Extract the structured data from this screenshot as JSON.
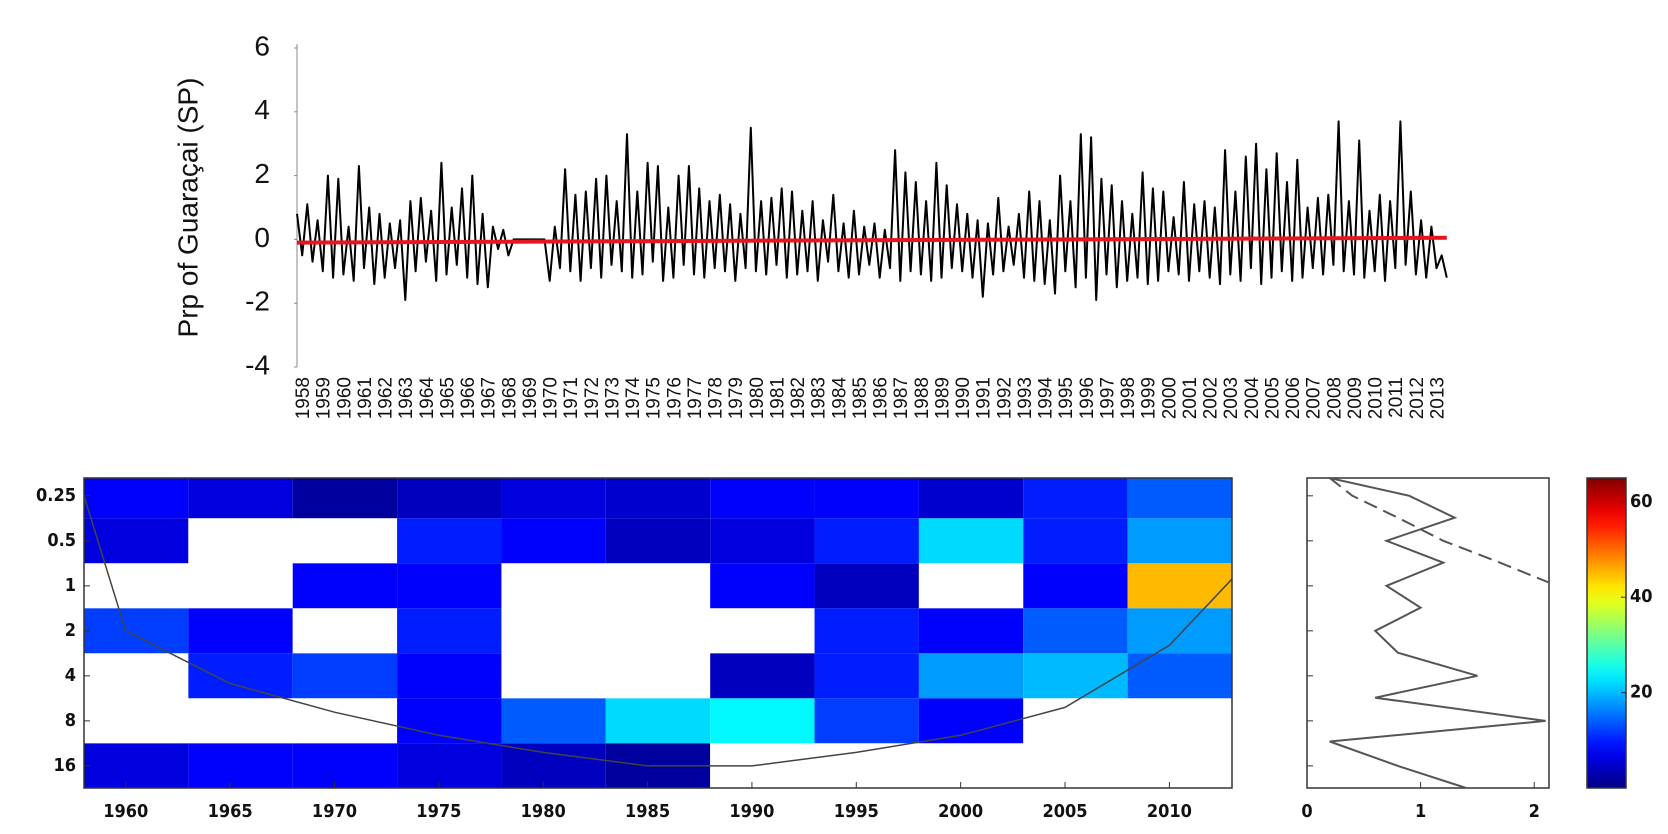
{
  "chart_data": [
    {
      "type": "line",
      "ylabel": "Prp of Guaraçai (SP)",
      "xlim": [
        1958,
        2014
      ],
      "xticks": [
        1958,
        1959,
        1960,
        1961,
        1962,
        1963,
        1964,
        1965,
        1966,
        1967,
        1968,
        1969,
        1970,
        1971,
        1972,
        1973,
        1974,
        1975,
        1976,
        1977,
        1978,
        1979,
        1980,
        1981,
        1982,
        1983,
        1984,
        1985,
        1986,
        1987,
        1988,
        1989,
        1990,
        1991,
        1992,
        1993,
        1994,
        1995,
        1996,
        1997,
        1998,
        1999,
        2000,
        2001,
        2002,
        2003,
        2004,
        2005,
        2006,
        2007,
        2008,
        2009,
        2010,
        2011,
        2012,
        2013
      ],
      "ylim": [
        -4,
        6
      ],
      "yticks": [
        -4,
        -2,
        0,
        2,
        4,
        6
      ],
      "grid": false,
      "series": [
        {
          "color": "#000000",
          "x": [
            1958,
            1958.25,
            1958.5,
            1958.75,
            1959,
            1959.25,
            1959.5,
            1959.75,
            1960,
            1960.25,
            1960.5,
            1960.75,
            1961,
            1961.25,
            1961.5,
            1961.75,
            1962,
            1962.25,
            1962.5,
            1962.75,
            1963,
            1963.25,
            1963.5,
            1963.75,
            1964,
            1964.25,
            1964.5,
            1964.75,
            1965,
            1965.25,
            1965.5,
            1965.75,
            1966,
            1966.25,
            1966.5,
            1966.75,
            1967,
            1967.25,
            1967.5,
            1967.75,
            1968,
            1968.25,
            1968.5,
            1968.75,
            1969,
            1969.25,
            1969.5,
            1969.75,
            1970,
            1970.25,
            1970.5,
            1970.75,
            1971,
            1971.25,
            1971.5,
            1971.75,
            1972,
            1972.25,
            1972.5,
            1972.75,
            1973,
            1973.25,
            1973.5,
            1973.75,
            1974,
            1974.25,
            1974.5,
            1974.75,
            1975,
            1975.25,
            1975.5,
            1975.75,
            1976,
            1976.25,
            1976.5,
            1976.75,
            1977,
            1977.25,
            1977.5,
            1977.75,
            1978,
            1978.25,
            1978.5,
            1978.75,
            1979,
            1979.25,
            1979.5,
            1979.75,
            1980,
            1980.25,
            1980.5,
            1980.75,
            1981,
            1981.25,
            1981.5,
            1981.75,
            1982,
            1982.25,
            1982.5,
            1982.75,
            1983,
            1983.25,
            1983.5,
            1983.75,
            1984,
            1984.25,
            1984.5,
            1984.75,
            1985,
            1985.25,
            1985.5,
            1985.75,
            1986,
            1986.25,
            1986.5,
            1986.75,
            1987,
            1987.25,
            1987.5,
            1987.75,
            1988,
            1988.25,
            1988.5,
            1988.75,
            1989,
            1989.25,
            1989.5,
            1989.75,
            1990,
            1990.25,
            1990.5,
            1990.75,
            1991,
            1991.25,
            1991.5,
            1991.75,
            1992,
            1992.25,
            1992.5,
            1992.75,
            1993,
            1993.25,
            1993.5,
            1993.75,
            1994,
            1994.25,
            1994.5,
            1994.75,
            1995,
            1995.25,
            1995.5,
            1995.75,
            1996,
            1996.25,
            1996.5,
            1996.75,
            1997,
            1997.25,
            1997.5,
            1997.75,
            1998,
            1998.25,
            1998.5,
            1998.75,
            1999,
            1999.25,
            1999.5,
            1999.75,
            2000,
            2000.25,
            2000.5,
            2000.75,
            2001,
            2001.25,
            2001.5,
            2001.75,
            2002,
            2002.25,
            2002.5,
            2002.75,
            2003,
            2003.25,
            2003.5,
            2003.75,
            2004,
            2004.25,
            2004.5,
            2004.75,
            2005,
            2005.25,
            2005.5,
            2005.75,
            2006,
            2006.25,
            2006.5,
            2006.75,
            2007,
            2007.25,
            2007.5,
            2007.75,
            2008,
            2008.25,
            2008.5,
            2008.75,
            2009,
            2009.25,
            2009.5,
            2009.75,
            2010,
            2010.25,
            2010.5,
            2010.75,
            2011,
            2011.25,
            2011.5,
            2011.75,
            2012,
            2012.25,
            2012.5,
            2012.75,
            2013,
            2013.25,
            2013.5,
            2013.75
          ],
          "values": [
            0.8,
            -0.5,
            1.1,
            -0.7,
            0.6,
            -1.0,
            2.0,
            -1.2,
            1.9,
            -1.1,
            0.4,
            -1.3,
            2.3,
            -0.9,
            1.0,
            -1.4,
            0.8,
            -1.2,
            0.5,
            -0.9,
            0.6,
            -1.9,
            1.2,
            -1.0,
            1.3,
            -0.7,
            0.9,
            -1.3,
            2.4,
            -1.1,
            1.0,
            -0.8,
            1.6,
            -1.2,
            2.0,
            -1.4,
            0.8,
            -1.5,
            0.4,
            -0.3,
            0.3,
            -0.5,
            0,
            0,
            0,
            0,
            0,
            0,
            0,
            -1.3,
            0.4,
            -0.9,
            2.2,
            -1.0,
            1.4,
            -1.3,
            1.5,
            -0.9,
            1.9,
            -1.2,
            2.0,
            -0.8,
            1.2,
            -1.0,
            3.3,
            -1.2,
            1.5,
            -1.1,
            2.4,
            -0.7,
            2.3,
            -1.3,
            1.0,
            -1.2,
            2.0,
            -0.8,
            2.3,
            -1.1,
            1.6,
            -1.2,
            1.2,
            -0.9,
            1.4,
            -1.0,
            1.1,
            -1.3,
            0.8,
            -0.9,
            3.5,
            -1.0,
            1.2,
            -1.1,
            1.3,
            -0.8,
            1.6,
            -1.2,
            1.5,
            -1.1,
            0.9,
            -1.0,
            1.2,
            -1.3,
            0.6,
            -0.7,
            1.4,
            -1.0,
            0.5,
            -1.2,
            0.9,
            -1.1,
            0.4,
            -0.8,
            0.5,
            -1.2,
            0.3,
            -0.9,
            2.8,
            -1.3,
            2.1,
            -1.0,
            1.8,
            -1.1,
            1.2,
            -1.3,
            2.4,
            -1.2,
            1.7,
            -0.9,
            1.1,
            -1.0,
            0.8,
            -1.2,
            0.6,
            -1.8,
            0.5,
            -1.1,
            1.3,
            -1.0,
            0.4,
            -0.8,
            0.8,
            -1.2,
            1.5,
            -1.3,
            1.2,
            -1.4,
            0.6,
            -1.7,
            2.0,
            -1.0,
            1.2,
            -1.5,
            3.3,
            -1.2,
            3.2,
            -1.9,
            1.9,
            -1.1,
            1.7,
            -1.5,
            1.2,
            -1.3,
            0.8,
            -1.2,
            2.1,
            -1.4,
            1.6,
            -1.3,
            1.5,
            -1.0,
            0.7,
            -1.1,
            1.8,
            -1.3,
            1.1,
            -1.0,
            1.2,
            -1.2,
            1.0,
            -1.4,
            2.8,
            -1.1,
            1.5,
            -1.3,
            2.6,
            -0.9,
            3.0,
            -1.4,
            2.2,
            -1.2,
            2.7,
            -1.0,
            1.8,
            -1.3,
            2.5,
            -1.2,
            1.0,
            -0.9,
            1.3,
            -1.1,
            1.4,
            -0.8,
            3.7,
            -1.0,
            1.2,
            -1.1,
            3.1,
            -1.2,
            0.9,
            -1.0,
            1.4,
            -1.3,
            1.2,
            -0.9,
            3.7,
            -0.8,
            1.5,
            -1.1,
            0.6,
            -1.2,
            0.4,
            -0.9,
            -0.5,
            -1.2
          ]
        },
        {
          "color": "#e8141e",
          "x": [
            1958,
            2013.75
          ],
          "values": [
            -0.1,
            0.05
          ]
        }
      ]
    },
    {
      "type": "heatmap",
      "x": [
        1960.5,
        1965.5,
        1970.5,
        1975.5,
        1980.5,
        1985.5,
        1990.5,
        1995.5,
        2000.5,
        2005.5,
        2010.5
      ],
      "y": [
        0.25,
        0.5,
        1,
        2,
        4,
        8,
        16
      ],
      "values": [
        [
          8,
          6,
          2,
          4,
          6,
          5,
          8,
          8,
          5,
          10,
          14
        ],
        [
          6,
          0,
          0,
          10,
          8,
          4,
          6,
          10,
          22,
          10,
          18
        ],
        [
          0,
          0,
          8,
          8,
          0,
          0,
          8,
          4,
          0,
          8,
          45
        ],
        [
          12,
          8,
          0,
          10,
          0,
          0,
          0,
          10,
          8,
          14,
          18
        ],
        [
          0,
          10,
          12,
          8,
          0,
          0,
          4,
          10,
          18,
          20,
          14
        ],
        [
          0,
          0,
          0,
          8,
          14,
          22,
          24,
          12,
          8,
          0,
          0
        ],
        [
          6,
          8,
          8,
          6,
          4,
          2,
          0,
          0,
          0,
          0,
          0
        ]
      ],
      "xlim": [
        1958,
        2013
      ],
      "xticks": [
        1960,
        1965,
        1970,
        1975,
        1980,
        1985,
        1990,
        1995,
        2000,
        2005,
        2010
      ],
      "ylim": [
        0.19,
        22.5
      ],
      "yticks": [
        0.25,
        0.5,
        1,
        2,
        4,
        8,
        16
      ],
      "y_scale": "log",
      "y_inverted": true,
      "colormap": "jet",
      "clim": [
        0,
        65
      ],
      "cone": {
        "x": [
          1958,
          1960,
          1965,
          1970,
          1975,
          1980,
          1985,
          1990,
          1995,
          2000,
          2005,
          2010,
          2013
        ],
        "y": [
          0.25,
          2,
          4.5,
          7,
          10,
          13,
          16,
          16,
          13,
          10,
          6.5,
          2.5,
          0.9
        ]
      }
    },
    {
      "type": "line",
      "xlim": [
        0,
        2.13
      ],
      "xticks": [
        0,
        1,
        2
      ],
      "ylim": [
        0.19,
        22.5
      ],
      "y_scale": "log",
      "y_inverted": true,
      "series": [
        {
          "color": "#555555",
          "y": [
            0.19,
            0.25,
            0.35,
            0.5,
            0.7,
            1,
            1.4,
            2,
            2.8,
            4,
            5.6,
            8,
            11,
            16,
            22.5
          ],
          "values": [
            0.2,
            0.9,
            1.3,
            0.7,
            1.2,
            0.7,
            1.0,
            0.6,
            0.8,
            1.5,
            0.6,
            2.1,
            0.2,
            0.8,
            1.4
          ]
        },
        {
          "color": "#555555",
          "dash": true,
          "y": [
            0.19,
            0.25,
            0.35,
            0.5,
            0.7,
            1
          ],
          "values": [
            0.2,
            0.4,
            0.8,
            1.2,
            1.7,
            2.2
          ]
        }
      ]
    },
    {
      "type": "colorbar",
      "colormap": "jet",
      "ylim": [
        0,
        65
      ],
      "yticks": [
        20,
        40,
        60
      ]
    }
  ]
}
